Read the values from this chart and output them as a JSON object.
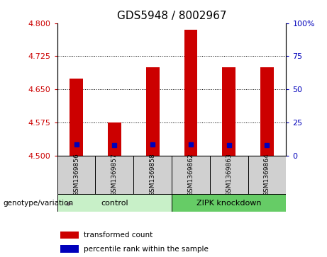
{
  "title": "GDS5948 / 8002967",
  "samples": [
    "GSM1369856",
    "GSM1369857",
    "GSM1369858",
    "GSM1369862",
    "GSM1369863",
    "GSM1369864"
  ],
  "bar_bottoms": [
    4.5,
    4.5,
    4.5,
    4.5,
    4.5,
    4.5
  ],
  "bar_tops": [
    4.675,
    4.575,
    4.7,
    4.785,
    4.7,
    4.7
  ],
  "blue_markers": [
    4.525,
    4.523,
    4.525,
    4.525,
    4.524,
    4.524
  ],
  "bar_color": "#CC0000",
  "blue_color": "#0000BB",
  "ylim_left": [
    4.5,
    4.8
  ],
  "yticks_left": [
    4.5,
    4.575,
    4.65,
    4.725,
    4.8
  ],
  "ylim_right": [
    0,
    100
  ],
  "yticks_right": [
    0,
    25,
    50,
    75,
    100
  ],
  "yticklabels_right": [
    "0",
    "25",
    "50",
    "75",
    "100%"
  ],
  "groups": [
    {
      "label": "control",
      "indices": [
        0,
        1,
        2
      ],
      "color": "#c8f0c8"
    },
    {
      "label": "ZIPK knockdown",
      "indices": [
        3,
        4,
        5
      ],
      "color": "#66cc66"
    }
  ],
  "sample_box_color": "#d0d0d0",
  "genotype_label": "genotype/variation",
  "legend_items": [
    {
      "label": "transformed count",
      "color": "#CC0000"
    },
    {
      "label": "percentile rank within the sample",
      "color": "#0000BB"
    }
  ],
  "grid_color": "black",
  "xlabel_color": "#CC0000",
  "ylabel_color": "#0000BB",
  "title_fontsize": 11,
  "tick_fontsize": 8,
  "bar_width": 0.35
}
